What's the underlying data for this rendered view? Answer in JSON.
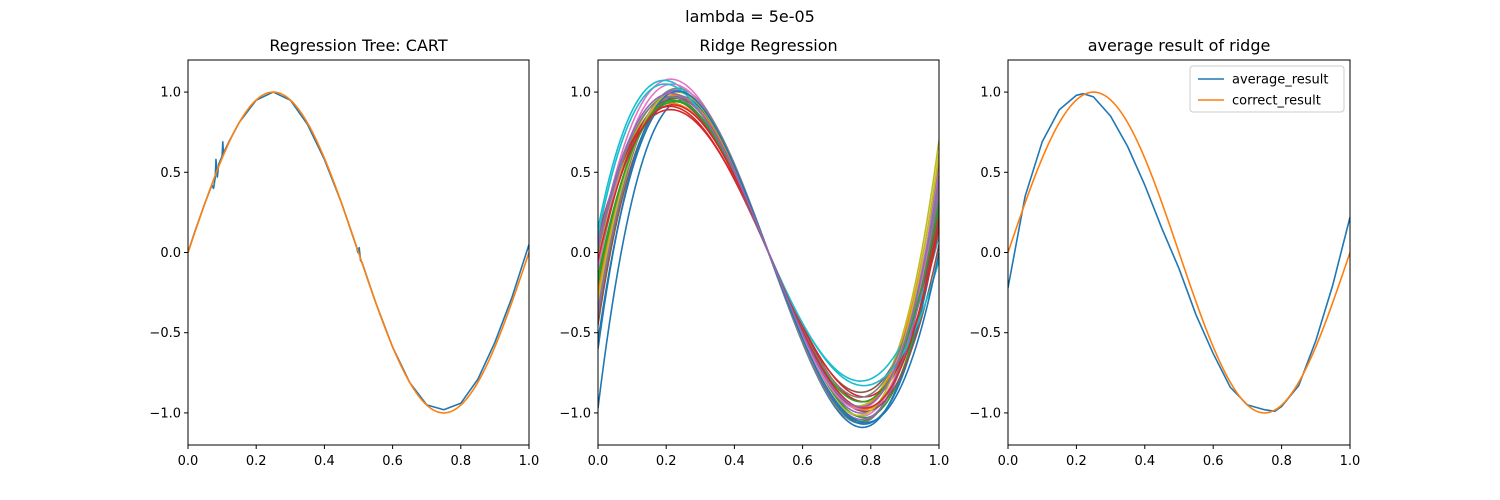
{
  "figure": {
    "suptitle": "lambda = 5e-05"
  },
  "chart_data": [
    {
      "type": "line",
      "title": "Regression Tree: CART",
      "xlabel": "",
      "ylabel": "",
      "xlim": [
        0,
        1
      ],
      "ylim": [
        -1.2,
        1.2
      ],
      "xticks": [
        "0.0",
        "0.2",
        "0.4",
        "0.6",
        "0.8",
        "1.0"
      ],
      "yticks": [
        "-1.0",
        "-0.5",
        "0.0",
        "0.5",
        "1.0"
      ],
      "grid": false,
      "series": [
        {
          "color": "#1f77b4",
          "description": "tree prediction, approx. sin(2*pi*x) with small spikes near x=0.08, 0.10, 0.50",
          "x": [
            0.0,
            0.02,
            0.05,
            0.07,
            0.075,
            0.08,
            0.082,
            0.086,
            0.09,
            0.1,
            0.102,
            0.104,
            0.12,
            0.15,
            0.2,
            0.25,
            0.3,
            0.35,
            0.4,
            0.45,
            0.495,
            0.498,
            0.502,
            0.506,
            0.51,
            0.55,
            0.6,
            0.65,
            0.7,
            0.75,
            0.8,
            0.85,
            0.9,
            0.95,
            1.0
          ],
          "y": [
            0.0,
            0.13,
            0.31,
            0.42,
            0.4,
            0.47,
            0.58,
            0.47,
            0.55,
            0.6,
            0.69,
            0.62,
            0.69,
            0.81,
            0.95,
            1.0,
            0.95,
            0.8,
            0.58,
            0.31,
            0.03,
            0.0,
            0.03,
            -0.05,
            -0.06,
            -0.31,
            -0.59,
            -0.81,
            -0.95,
            -0.98,
            -0.94,
            -0.79,
            -0.56,
            -0.28,
            0.05
          ]
        },
        {
          "color": "#ff7f0e",
          "description": "correct result sin(2*pi*x)",
          "function": "sin(2*pi*x)"
        }
      ]
    },
    {
      "type": "line",
      "title": "Ridge Regression",
      "xlabel": "",
      "ylabel": "",
      "xlim": [
        0,
        1
      ],
      "ylim": [
        -1.2,
        1.2
      ],
      "xticks": [
        "0.0",
        "0.2",
        "0.4",
        "0.6",
        "0.8",
        "1.0"
      ],
      "yticks": [
        "-1.0",
        "-0.5",
        "0.0",
        "0.5",
        "1.0"
      ],
      "grid": false,
      "series_description": "many ridge fits (approx. 3rd-degree polynomials) of sin(2*pi*x), each defined by values at x = 0, 0.22, 0.5, 0.78, 1",
      "series": [
        {
          "color": "#1f77b4",
          "knots": [
            -0.97,
            0.93,
            0.0,
            -1.09,
            0.3
          ]
        },
        {
          "color": "#ff7f0e",
          "knots": [
            0.08,
            0.93,
            0.0,
            -0.98,
            0.35
          ]
        },
        {
          "color": "#2ca02c",
          "knots": [
            -0.3,
            1.0,
            0.0,
            -1.05,
            0.5
          ]
        },
        {
          "color": "#d62728",
          "knots": [
            0.1,
            0.89,
            0.0,
            -0.93,
            0.3
          ]
        },
        {
          "color": "#9467bd",
          "knots": [
            -0.2,
            0.97,
            0.0,
            -1.0,
            0.4
          ]
        },
        {
          "color": "#8c564b",
          "knots": [
            -0.1,
            0.95,
            0.0,
            -0.87,
            0.3
          ]
        },
        {
          "color": "#e377c2",
          "knots": [
            0.0,
            1.08,
            0.0,
            -1.02,
            0.45
          ]
        },
        {
          "color": "#7f7f7f",
          "knots": [
            -0.4,
            1.02,
            0.0,
            -1.06,
            0.55
          ]
        },
        {
          "color": "#bcbd22",
          "knots": [
            -0.05,
            0.99,
            0.0,
            -0.95,
            0.7
          ]
        },
        {
          "color": "#17becf",
          "knots": [
            0.15,
            1.06,
            0.0,
            -0.8,
            0.1
          ]
        },
        {
          "color": "#1f77b4",
          "knots": [
            -0.55,
            0.97,
            0.0,
            -1.07,
            0.2
          ]
        },
        {
          "color": "#ff7f0e",
          "knots": [
            -0.25,
            0.98,
            0.0,
            -0.96,
            0.6
          ]
        },
        {
          "color": "#2ca02c",
          "knots": [
            -0.15,
            0.94,
            0.0,
            -1.03,
            0.25
          ]
        },
        {
          "color": "#d62728",
          "knots": [
            0.05,
            0.91,
            0.0,
            -0.9,
            0.15
          ]
        },
        {
          "color": "#9467bd",
          "knots": [
            -0.35,
            1.01,
            0.0,
            -1.04,
            0.38
          ]
        },
        {
          "color": "#8c564b",
          "knots": [
            -0.45,
            0.96,
            0.0,
            -0.99,
            0.05
          ]
        },
        {
          "color": "#e377c2",
          "knots": [
            -0.1,
            1.05,
            0.0,
            -0.97,
            0.5
          ]
        },
        {
          "color": "#7f7f7f",
          "knots": [
            0.0,
            0.97,
            0.0,
            -0.9,
            0.42
          ]
        },
        {
          "color": "#bcbd22",
          "knots": [
            -0.3,
            1.0,
            0.0,
            -1.01,
            0.62
          ]
        },
        {
          "color": "#17becf",
          "knots": [
            0.1,
            1.04,
            0.0,
            -0.83,
            -0.05
          ]
        },
        {
          "color": "#1f77b4",
          "knots": [
            -0.6,
            1.0,
            0.0,
            -1.06,
            0.0
          ]
        },
        {
          "color": "#2ca02c",
          "knots": [
            -0.2,
            0.95,
            0.0,
            -0.93,
            0.32
          ]
        },
        {
          "color": "#d62728",
          "knots": [
            -0.05,
            0.92,
            0.0,
            -0.97,
            0.22
          ]
        },
        {
          "color": "#9467bd",
          "knots": [
            0.05,
            0.99,
            0.0,
            -0.96,
            0.48
          ]
        }
      ]
    },
    {
      "type": "line",
      "title": "average result of ridge",
      "xlabel": "",
      "ylabel": "",
      "xlim": [
        0,
        1
      ],
      "ylim": [
        -1.2,
        1.2
      ],
      "xticks": [
        "0.0",
        "0.2",
        "0.4",
        "0.6",
        "0.8",
        "1.0"
      ],
      "yticks": [
        "-1.0",
        "-0.5",
        "0.0",
        "0.5",
        "1.0"
      ],
      "grid": false,
      "legend": {
        "placement": "top-right",
        "entries": [
          "average_result",
          "correct_result"
        ]
      },
      "series": [
        {
          "name": "average_result",
          "color": "#1f77b4",
          "x": [
            0.0,
            0.05,
            0.1,
            0.15,
            0.2,
            0.22,
            0.25,
            0.3,
            0.35,
            0.4,
            0.45,
            0.5,
            0.55,
            0.6,
            0.65,
            0.7,
            0.75,
            0.78,
            0.8,
            0.85,
            0.9,
            0.95,
            1.0
          ],
          "y": [
            -0.22,
            0.35,
            0.69,
            0.89,
            0.98,
            0.99,
            0.97,
            0.85,
            0.66,
            0.42,
            0.15,
            -0.1,
            -0.39,
            -0.63,
            -0.84,
            -0.95,
            -0.98,
            -0.99,
            -0.96,
            -0.83,
            -0.55,
            -0.2,
            0.22
          ]
        },
        {
          "name": "correct_result",
          "color": "#ff7f0e",
          "function": "sin(2*pi*x)"
        }
      ]
    }
  ]
}
